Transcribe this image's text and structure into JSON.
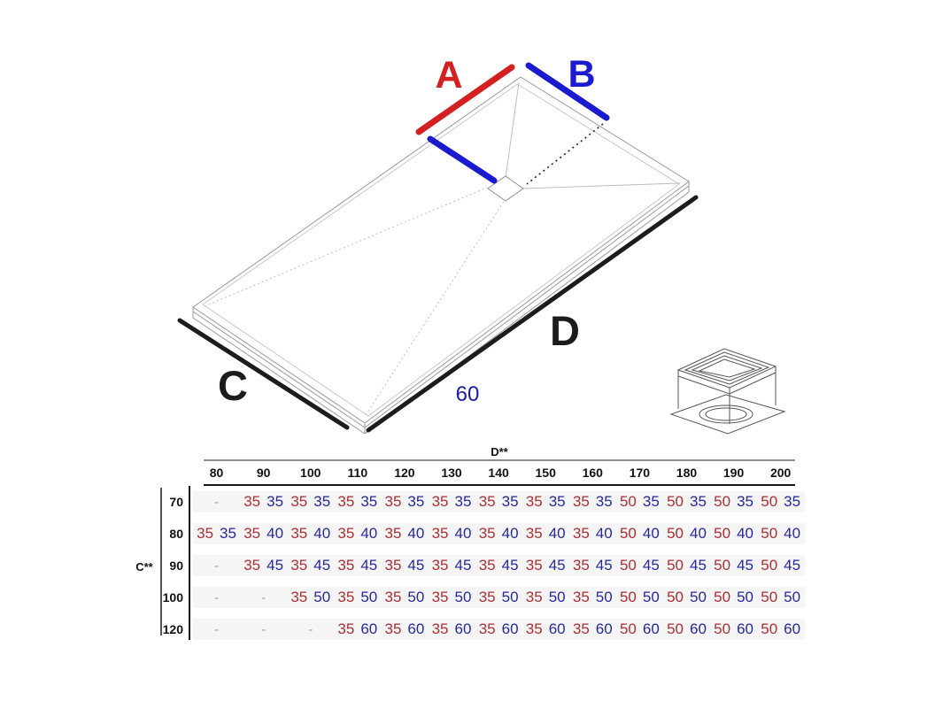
{
  "diagram": {
    "labels": {
      "a": "A",
      "b": "B",
      "c": "C",
      "d": "D",
      "drain_offset": "60"
    },
    "colors": {
      "dim_red": "#d42020",
      "dim_blue": "#1a1acf",
      "dim_black": "#1c1c1c",
      "offset_text_blue": "#1a1ab0"
    },
    "icons": {
      "drain": "drain-outlet-icon"
    }
  },
  "table": {
    "col_axis_label": "D**",
    "row_axis_label": "C**",
    "columns": [
      "80",
      "90",
      "100",
      "110",
      "120",
      "130",
      "140",
      "150",
      "160",
      "170",
      "180",
      "190",
      "200"
    ],
    "value_colors": {
      "first": "#ac2f35",
      "second": "#28289e",
      "dash": "#98a0b0"
    },
    "rows": [
      {
        "label": "70",
        "cells": [
          "-",
          [
            "35",
            "35"
          ],
          [
            "35",
            "35"
          ],
          [
            "35",
            "35"
          ],
          [
            "35",
            "35"
          ],
          [
            "35",
            "35"
          ],
          [
            "35",
            "35"
          ],
          [
            "35",
            "35"
          ],
          [
            "35",
            "35"
          ],
          [
            "50",
            "35"
          ],
          [
            "50",
            "35"
          ],
          [
            "50",
            "35"
          ],
          [
            "50",
            "35"
          ]
        ]
      },
      {
        "label": "80",
        "cells": [
          [
            "35",
            "35"
          ],
          [
            "35",
            "40"
          ],
          [
            "35",
            "40"
          ],
          [
            "35",
            "40"
          ],
          [
            "35",
            "40"
          ],
          [
            "35",
            "40"
          ],
          [
            "35",
            "40"
          ],
          [
            "35",
            "40"
          ],
          [
            "35",
            "40"
          ],
          [
            "50",
            "40"
          ],
          [
            "50",
            "40"
          ],
          [
            "50",
            "40"
          ],
          [
            "50",
            "40"
          ]
        ]
      },
      {
        "label": "90",
        "cells": [
          "-",
          [
            "35",
            "45"
          ],
          [
            "35",
            "45"
          ],
          [
            "35",
            "45"
          ],
          [
            "35",
            "45"
          ],
          [
            "35",
            "45"
          ],
          [
            "35",
            "45"
          ],
          [
            "35",
            "45"
          ],
          [
            "35",
            "45"
          ],
          [
            "50",
            "45"
          ],
          [
            "50",
            "45"
          ],
          [
            "50",
            "45"
          ],
          [
            "50",
            "45"
          ]
        ]
      },
      {
        "label": "100",
        "cells": [
          "-",
          "-",
          [
            "35",
            "50"
          ],
          [
            "35",
            "50"
          ],
          [
            "35",
            "50"
          ],
          [
            "35",
            "50"
          ],
          [
            "35",
            "50"
          ],
          [
            "35",
            "50"
          ],
          [
            "35",
            "50"
          ],
          [
            "50",
            "50"
          ],
          [
            "50",
            "50"
          ],
          [
            "50",
            "50"
          ],
          [
            "50",
            "50"
          ]
        ]
      },
      {
        "label": "120",
        "cells": [
          "-",
          "-",
          "-",
          [
            "35",
            "60"
          ],
          [
            "35",
            "60"
          ],
          [
            "35",
            "60"
          ],
          [
            "35",
            "60"
          ],
          [
            "35",
            "60"
          ],
          [
            "35",
            "60"
          ],
          [
            "50",
            "60"
          ],
          [
            "50",
            "60"
          ],
          [
            "50",
            "60"
          ],
          [
            "50",
            "60"
          ]
        ]
      }
    ]
  }
}
